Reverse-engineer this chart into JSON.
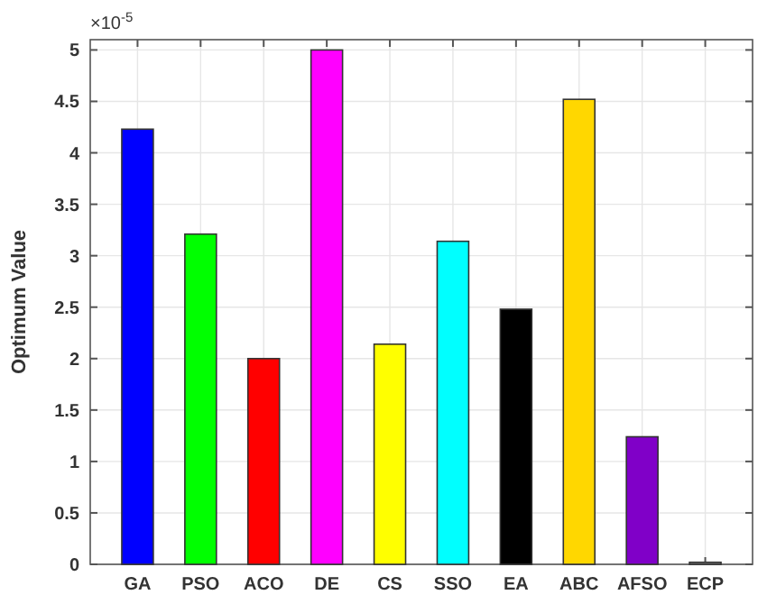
{
  "chart_data": {
    "type": "bar",
    "ylabel": "Optimum Value",
    "annotations": [
      "×10$^{-5}$"
    ],
    "categories": [
      "GA",
      "PSO",
      "ACO",
      "DE",
      "CS",
      "SSO",
      "EA",
      "ABC",
      "AFSO",
      "ECP"
    ],
    "values": [
      4.23,
      3.21,
      2.0,
      5.0,
      2.14,
      3.14,
      2.48,
      4.52,
      1.24,
      0.02
    ],
    "colors": [
      "#0000ff",
      "#00ff00",
      "#ff0000",
      "#ff00ff",
      "#ffff00",
      "#00ffff",
      "#000000",
      "#ffd700",
      "#8000c8",
      "#808080"
    ],
    "ylim": [
      0,
      5.1
    ],
    "yticks": [
      0,
      0.5,
      1,
      1.5,
      2,
      2.5,
      3,
      3.5,
      4,
      4.5,
      5
    ],
    "grid": true
  }
}
